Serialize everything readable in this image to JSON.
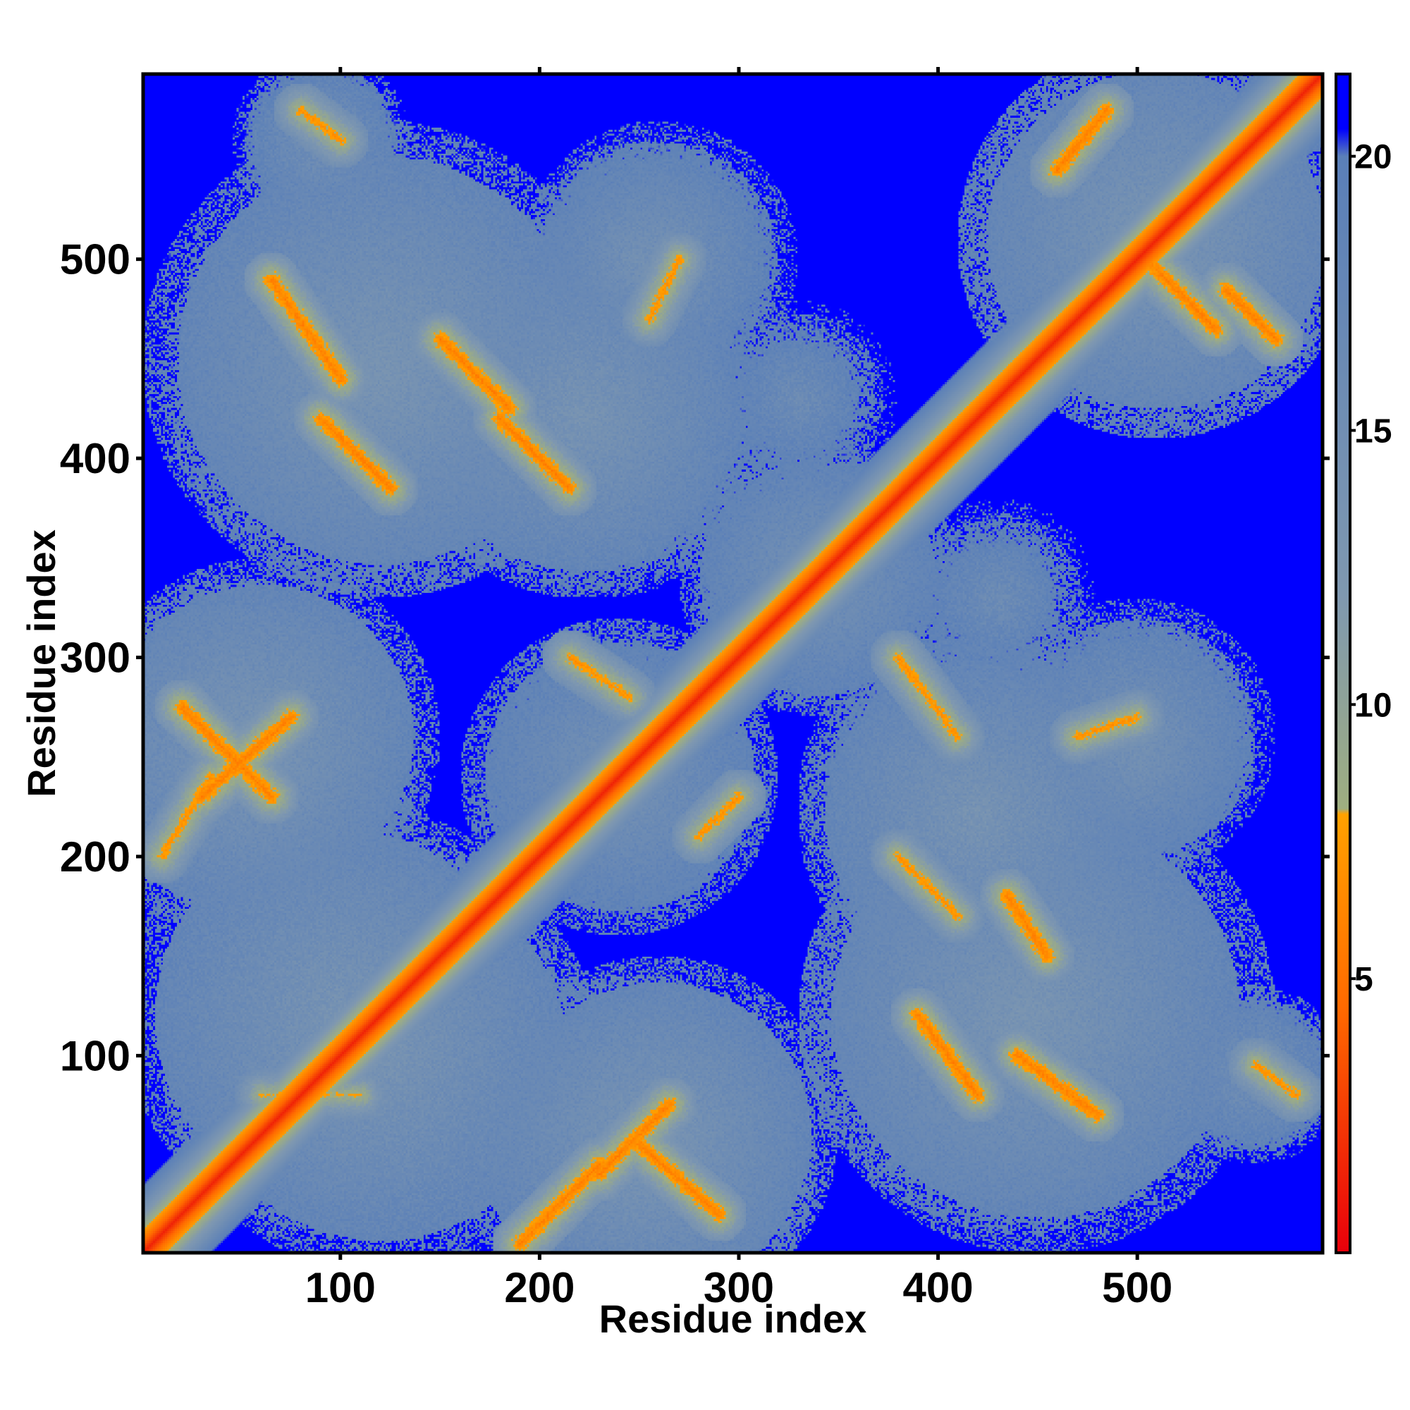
{
  "chart_data": {
    "type": "heatmap",
    "title": "",
    "xlabel": "Residue index",
    "ylabel": "Residue index",
    "xlim": [
      1,
      593
    ],
    "ylim": [
      1,
      593
    ],
    "x_ticks": [
      100,
      200,
      300,
      400,
      500
    ],
    "x_tick_labels": [
      "100",
      "200",
      "300",
      "400",
      "500"
    ],
    "y_ticks": [
      100,
      200,
      300,
      400,
      500
    ],
    "y_tick_labels": [
      "100",
      "200",
      "300",
      "400",
      "500"
    ],
    "colorbar": {
      "range": [
        0,
        21.5
      ],
      "ticks": [
        5,
        10,
        15,
        20
      ],
      "tick_labels": [
        "5",
        "10",
        "15",
        "20"
      ],
      "stops": [
        {
          "value": 0,
          "color": "#e8000b"
        },
        {
          "value": 4.5,
          "color": "#ff6a00"
        },
        {
          "value": 8.0,
          "color": "#ffa100"
        },
        {
          "value": 8.1,
          "color": "#9fae80"
        },
        {
          "value": 12.0,
          "color": "#7f98b0"
        },
        {
          "value": 20.0,
          "color": "#5a7fb8"
        },
        {
          "value": 20.5,
          "color": "#0000ff"
        },
        {
          "value": 21.5,
          "color": "#0000ff"
        }
      ]
    },
    "background_value": 21.5,
    "diagonal_value": 1.5,
    "contacts": [
      {
        "x1": 110,
        "y1": 80,
        "x2": 60,
        "y2": 80,
        "d": 8
      },
      {
        "x1": 250,
        "y1": 55,
        "x2": 290,
        "y2": 20,
        "d": 6
      },
      {
        "x1": 230,
        "y1": 40,
        "x2": 265,
        "y2": 75,
        "d": 6
      },
      {
        "x1": 190,
        "y1": 5,
        "x2": 230,
        "y2": 45,
        "d": 6
      },
      {
        "x1": 30,
        "y1": 230,
        "x2": 75,
        "y2": 270,
        "d": 6
      },
      {
        "x1": 20,
        "y1": 275,
        "x2": 65,
        "y2": 230,
        "d": 6
      },
      {
        "x1": 10,
        "y1": 200,
        "x2": 35,
        "y2": 240,
        "d": 7
      },
      {
        "x1": 215,
        "y1": 300,
        "x2": 245,
        "y2": 280,
        "d": 7
      },
      {
        "x1": 280,
        "y1": 210,
        "x2": 300,
        "y2": 230,
        "d": 7
      },
      {
        "x1": 90,
        "y1": 420,
        "x2": 125,
        "y2": 385,
        "d": 6
      },
      {
        "x1": 65,
        "y1": 490,
        "x2": 100,
        "y2": 440,
        "d": 6
      },
      {
        "x1": 180,
        "y1": 420,
        "x2": 215,
        "y2": 385,
        "d": 6
      },
      {
        "x1": 150,
        "y1": 460,
        "x2": 185,
        "y2": 425,
        "d": 6
      },
      {
        "x1": 80,
        "y1": 575,
        "x2": 100,
        "y2": 560,
        "d": 7
      },
      {
        "x1": 380,
        "y1": 200,
        "x2": 410,
        "y2": 170,
        "d": 7
      },
      {
        "x1": 390,
        "y1": 120,
        "x2": 420,
        "y2": 80,
        "d": 6
      },
      {
        "x1": 440,
        "y1": 100,
        "x2": 480,
        "y2": 70,
        "d": 6
      },
      {
        "x1": 435,
        "y1": 180,
        "x2": 455,
        "y2": 150,
        "d": 6
      },
      {
        "x1": 500,
        "y1": 505,
        "x2": 540,
        "y2": 465,
        "d": 6
      },
      {
        "x1": 460,
        "y1": 545,
        "x2": 485,
        "y2": 575,
        "d": 6
      },
      {
        "x1": 545,
        "y1": 485,
        "x2": 570,
        "y2": 460,
        "d": 6
      },
      {
        "x1": 535,
        "y1": 535,
        "x2": 555,
        "y2": 555,
        "d": 5
      },
      {
        "x1": 255,
        "y1": 470,
        "x2": 270,
        "y2": 500,
        "d": 7
      },
      {
        "x1": 380,
        "y1": 300,
        "x2": 410,
        "y2": 260,
        "d": 7
      },
      {
        "x1": 470,
        "y1": 260,
        "x2": 500,
        "y2": 270,
        "d": 7
      },
      {
        "x1": 560,
        "y1": 95,
        "x2": 580,
        "y2": 80,
        "d": 7
      }
    ],
    "patches": [
      {
        "x": 120,
        "y": 100,
        "r": 110,
        "d": 14
      },
      {
        "x": 260,
        "y": 60,
        "r": 90,
        "d": 14
      },
      {
        "x": 50,
        "y": 250,
        "r": 90,
        "d": 14
      },
      {
        "x": 240,
        "y": 240,
        "r": 80,
        "d": 15
      },
      {
        "x": 120,
        "y": 450,
        "r": 120,
        "d": 14
      },
      {
        "x": 220,
        "y": 420,
        "r": 90,
        "d": 14
      },
      {
        "x": 440,
        "y": 120,
        "r": 110,
        "d": 14
      },
      {
        "x": 420,
        "y": 230,
        "r": 90,
        "d": 15
      },
      {
        "x": 500,
        "y": 260,
        "r": 70,
        "d": 15
      },
      {
        "x": 510,
        "y": 510,
        "r": 100,
        "d": 14
      },
      {
        "x": 340,
        "y": 340,
        "r": 70,
        "d": 15
      },
      {
        "x": 250,
        "y": 500,
        "r": 60,
        "d": 15
      },
      {
        "x": 330,
        "y": 430,
        "r": 50,
        "d": 16
      },
      {
        "x": 560,
        "y": 90,
        "r": 45,
        "d": 15
      }
    ]
  }
}
